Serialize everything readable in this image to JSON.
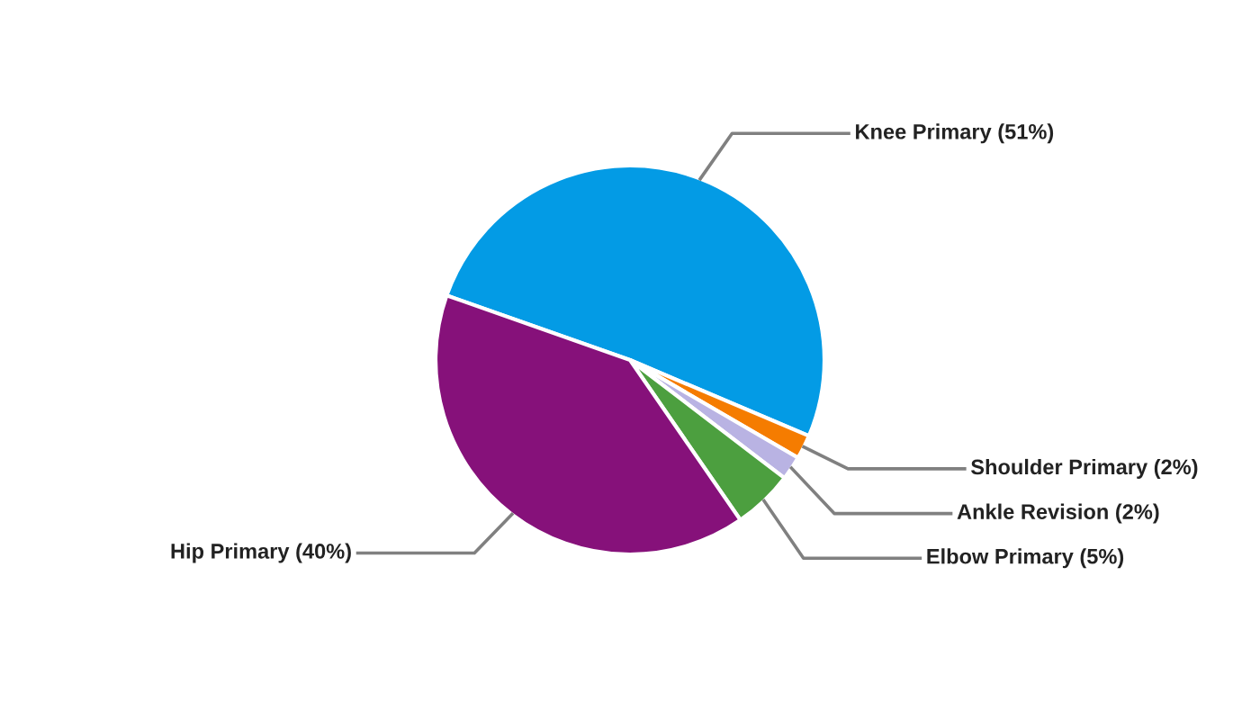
{
  "chart_data": {
    "type": "pie",
    "categories": [
      "Knee Primary (51%)",
      "Shoulder Primary (2%)",
      "Ankle Revision (2%)",
      "Elbow Primary (5%)",
      "Hip Primary (40%)"
    ],
    "values": [
      51,
      2,
      2,
      5,
      40
    ],
    "colors": [
      "#039be5",
      "#f57c00",
      "#b9b3e3",
      "#4c9f3f",
      "#86117a"
    ],
    "legend": false
  }
}
